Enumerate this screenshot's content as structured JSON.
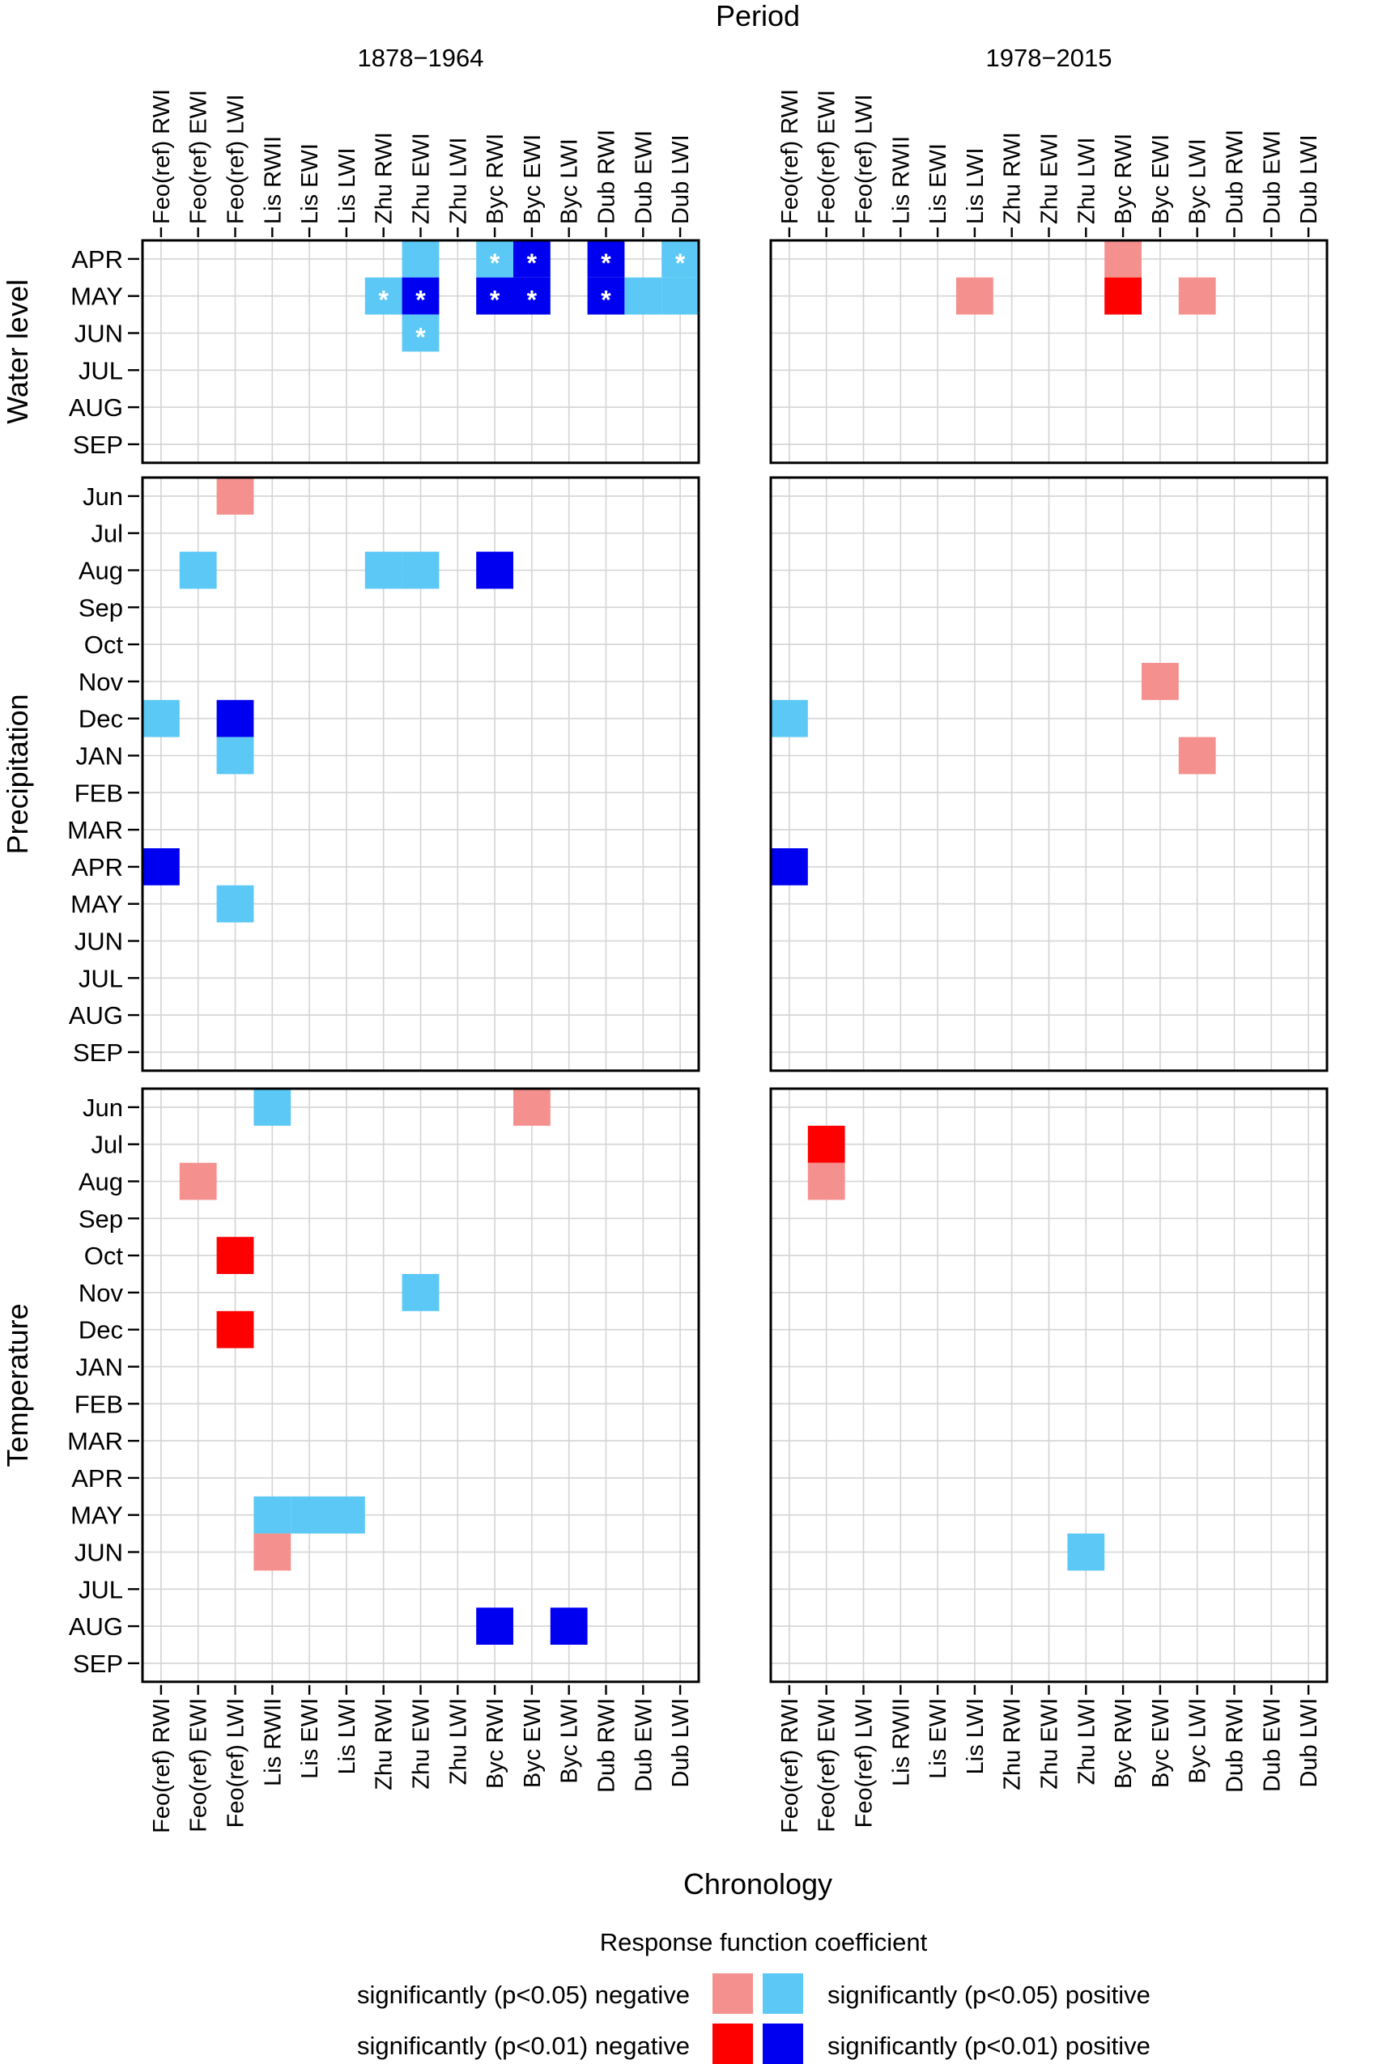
{
  "chart_data": {
    "type": "heatmap",
    "title": "Period",
    "xlabel": "Chronology",
    "periods": [
      "1878−1964",
      "1978−2015"
    ],
    "columns": [
      [
        "Feo(ref) RWI",
        "Feo(ref) EWI",
        "Feo(ref) LWI",
        "Lis RWII",
        "Lis EWI",
        "Lis LWI",
        "Zhu RWI",
        "Zhu EWI",
        "Zhu LWI",
        "Byc RWI",
        "Byc EWI",
        "Byc LWI",
        "Dub RWI",
        "Dub EWI",
        "Dub LWI"
      ],
      [
        "Feo(ref) RWI",
        "Feo(ref) EWI",
        "Feo(ref) LWI",
        "Lis RWII",
        "Lis EWI",
        "Lis LWI",
        "Zhu RWI",
        "Zhu EWI",
        "Zhu LWI",
        "Byc RWI",
        "Byc EWI",
        "Byc LWI",
        "Dub RWI",
        "Dub EWI",
        "Dub LWI"
      ]
    ],
    "facets": [
      {
        "name": "Water level",
        "rows": [
          "APR",
          "MAY",
          "JUN",
          "JUL",
          "AUG",
          "SEP"
        ]
      },
      {
        "name": "Precipitation",
        "rows": [
          "Jun",
          "Jul",
          "Aug",
          "Sep",
          "Oct",
          "Nov",
          "Dec",
          "JAN",
          "FEB",
          "MAR",
          "APR",
          "MAY",
          "JUN",
          "JUL",
          "AUG",
          "SEP"
        ]
      },
      {
        "name": "Temperature",
        "rows": [
          "Jun",
          "Jul",
          "Aug",
          "Sep",
          "Oct",
          "Nov",
          "Dec",
          "JAN",
          "FEB",
          "MAR",
          "APR",
          "MAY",
          "JUN",
          "JUL",
          "AUG",
          "SEP"
        ]
      }
    ],
    "categories": {
      "neg05": {
        "label": "significantly (p<0.05) negative",
        "color": "#f4908e"
      },
      "neg01": {
        "label": "significantly (p<0.01) negative",
        "color": "#ff0000"
      },
      "pos05": {
        "label": "significantly (p<0.05) positive",
        "color": "#5bc8f5"
      },
      "pos01": {
        "label": "significantly (p<0.01) positive",
        "color": "#0000f0"
      }
    },
    "cells": [
      {
        "facet": 0,
        "period": 0,
        "row": "APR",
        "col": "Zhu EWI",
        "sig": "pos05",
        "star": false
      },
      {
        "facet": 0,
        "period": 0,
        "row": "APR",
        "col": "Byc RWI",
        "sig": "pos05",
        "star": true
      },
      {
        "facet": 0,
        "period": 0,
        "row": "APR",
        "col": "Byc EWI",
        "sig": "pos01",
        "star": true
      },
      {
        "facet": 0,
        "period": 0,
        "row": "APR",
        "col": "Dub RWI",
        "sig": "pos01",
        "star": true
      },
      {
        "facet": 0,
        "period": 0,
        "row": "APR",
        "col": "Dub LWI",
        "sig": "pos05",
        "star": true
      },
      {
        "facet": 0,
        "period": 0,
        "row": "MAY",
        "col": "Zhu RWI",
        "sig": "pos05",
        "star": true
      },
      {
        "facet": 0,
        "period": 0,
        "row": "MAY",
        "col": "Zhu EWI",
        "sig": "pos01",
        "star": true
      },
      {
        "facet": 0,
        "period": 0,
        "row": "MAY",
        "col": "Byc RWI",
        "sig": "pos01",
        "star": true
      },
      {
        "facet": 0,
        "period": 0,
        "row": "MAY",
        "col": "Byc EWI",
        "sig": "pos01",
        "star": true
      },
      {
        "facet": 0,
        "period": 0,
        "row": "MAY",
        "col": "Dub RWI",
        "sig": "pos01",
        "star": true
      },
      {
        "facet": 0,
        "period": 0,
        "row": "MAY",
        "col": "Dub EWI",
        "sig": "pos05",
        "star": false
      },
      {
        "facet": 0,
        "period": 0,
        "row": "MAY",
        "col": "Dub LWI",
        "sig": "pos05",
        "star": false
      },
      {
        "facet": 0,
        "period": 0,
        "row": "JUN",
        "col": "Zhu EWI",
        "sig": "pos05",
        "star": true
      },
      {
        "facet": 0,
        "period": 1,
        "row": "APR",
        "col": "Byc RWI",
        "sig": "neg05",
        "star": false
      },
      {
        "facet": 0,
        "period": 1,
        "row": "MAY",
        "col": "Lis LWI",
        "sig": "neg05",
        "star": false
      },
      {
        "facet": 0,
        "period": 1,
        "row": "MAY",
        "col": "Byc RWI",
        "sig": "neg01",
        "star": false
      },
      {
        "facet": 0,
        "period": 1,
        "row": "MAY",
        "col": "Byc LWI",
        "sig": "neg05",
        "star": false
      },
      {
        "facet": 1,
        "period": 0,
        "row": 0,
        "col": "Feo(ref) LWI",
        "sig": "neg05",
        "star": false
      },
      {
        "facet": 1,
        "period": 0,
        "row": 2,
        "col": "Feo(ref) EWI",
        "sig": "pos05",
        "star": false
      },
      {
        "facet": 1,
        "period": 0,
        "row": 2,
        "col": "Zhu RWI",
        "sig": "pos05",
        "star": false
      },
      {
        "facet": 1,
        "period": 0,
        "row": 2,
        "col": "Zhu EWI",
        "sig": "pos05",
        "star": false
      },
      {
        "facet": 1,
        "period": 0,
        "row": 2,
        "col": "Byc RWI",
        "sig": "pos01",
        "star": false
      },
      {
        "facet": 1,
        "period": 0,
        "row": 6,
        "col": "Feo(ref) RWI",
        "sig": "pos05",
        "star": false
      },
      {
        "facet": 1,
        "period": 0,
        "row": 6,
        "col": "Feo(ref) LWI",
        "sig": "pos01",
        "star": false
      },
      {
        "facet": 1,
        "period": 0,
        "row": 7,
        "col": "Feo(ref) LWI",
        "sig": "pos05",
        "star": false
      },
      {
        "facet": 1,
        "period": 0,
        "row": 10,
        "col": "Feo(ref) RWI",
        "sig": "pos01",
        "star": false
      },
      {
        "facet": 1,
        "period": 0,
        "row": 11,
        "col": "Feo(ref) LWI",
        "sig": "pos05",
        "star": false
      },
      {
        "facet": 1,
        "period": 1,
        "row": 5,
        "col": "Byc EWI",
        "sig": "neg05",
        "star": false
      },
      {
        "facet": 1,
        "period": 1,
        "row": 6,
        "col": "Feo(ref) RWI",
        "sig": "pos05",
        "star": false
      },
      {
        "facet": 1,
        "period": 1,
        "row": 7,
        "col": "Byc LWI",
        "sig": "neg05",
        "star": false
      },
      {
        "facet": 1,
        "period": 1,
        "row": 10,
        "col": "Feo(ref) RWI",
        "sig": "pos01",
        "star": false
      },
      {
        "facet": 2,
        "period": 0,
        "row": 0,
        "col": "Lis RWII",
        "sig": "pos05",
        "star": false
      },
      {
        "facet": 2,
        "period": 0,
        "row": 0,
        "col": "Byc EWI",
        "sig": "neg05",
        "star": false
      },
      {
        "facet": 2,
        "period": 0,
        "row": 2,
        "col": "Feo(ref) EWI",
        "sig": "neg05",
        "star": false
      },
      {
        "facet": 2,
        "period": 0,
        "row": 4,
        "col": "Feo(ref) LWI",
        "sig": "neg01",
        "star": false
      },
      {
        "facet": 2,
        "period": 0,
        "row": 5,
        "col": "Zhu EWI",
        "sig": "pos05",
        "star": false
      },
      {
        "facet": 2,
        "period": 0,
        "row": 6,
        "col": "Feo(ref) LWI",
        "sig": "neg01",
        "star": false
      },
      {
        "facet": 2,
        "period": 0,
        "row": 11,
        "col": "Lis RWII",
        "sig": "pos05",
        "star": false
      },
      {
        "facet": 2,
        "period": 0,
        "row": 11,
        "col": "Lis EWI",
        "sig": "pos05",
        "star": false
      },
      {
        "facet": 2,
        "period": 0,
        "row": 11,
        "col": "Lis LWI",
        "sig": "pos05",
        "star": false
      },
      {
        "facet": 2,
        "period": 0,
        "row": 12,
        "col": "Lis RWII",
        "sig": "neg05",
        "star": false
      },
      {
        "facet": 2,
        "period": 0,
        "row": 14,
        "col": "Byc RWI",
        "sig": "pos01",
        "star": false
      },
      {
        "facet": 2,
        "period": 0,
        "row": 14,
        "col": "Byc LWI",
        "sig": "pos01",
        "star": false
      },
      {
        "facet": 2,
        "period": 1,
        "row": 1,
        "col": "Feo(ref) EWI",
        "sig": "neg01",
        "star": false
      },
      {
        "facet": 2,
        "period": 1,
        "row": 2,
        "col": "Feo(ref) EWI",
        "sig": "neg05",
        "star": false
      },
      {
        "facet": 2,
        "period": 1,
        "row": 12,
        "col": "Zhu LWI",
        "sig": "pos05",
        "star": false
      }
    ],
    "star_symbol": "*",
    "legend": {
      "title": "Response function coefficient",
      "left_labels": [
        "significantly (p<0.05) negative",
        "significantly (p<0.01) negative"
      ],
      "right_labels": [
        "significantly (p<0.05) positive",
        "significantly (p<0.01) positive"
      ]
    }
  }
}
